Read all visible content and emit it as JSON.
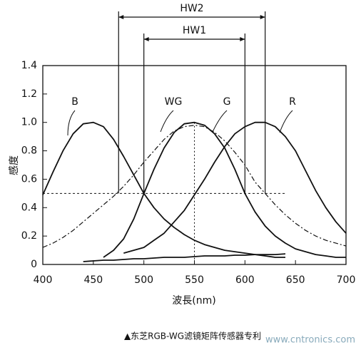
{
  "chart_data": {
    "type": "line",
    "y_label": "感度",
    "x_label": "波長(nm)",
    "caption": "▲东芝RGB-WG滤镜矩阵传感器专利",
    "watermark": "www.cntronics.com",
    "x": [
      400,
      410,
      420,
      430,
      440,
      450,
      460,
      470,
      480,
      490,
      500,
      510,
      520,
      530,
      540,
      550,
      560,
      570,
      580,
      590,
      600,
      610,
      620,
      630,
      640,
      650,
      660,
      670,
      680,
      690,
      700
    ],
    "series": [
      {
        "name": "B",
        "color": "#111111",
        "dash": "solid",
        "values": [
          0.49,
          0.65,
          0.8,
          0.92,
          0.99,
          1.0,
          0.97,
          0.88,
          0.76,
          0.63,
          0.5,
          0.4,
          0.32,
          0.26,
          0.21,
          0.17,
          0.14,
          0.12,
          0.1,
          0.09,
          0.08,
          0.07,
          0.06,
          0.05,
          0.05,
          null,
          null,
          null,
          null,
          null,
          null
        ]
      },
      {
        "name": "WG",
        "color": "#111111",
        "dash": "dash-dot",
        "values": [
          0.12,
          0.15,
          0.19,
          0.24,
          0.3,
          0.36,
          0.42,
          0.48,
          0.55,
          0.63,
          0.72,
          0.8,
          0.88,
          0.94,
          0.97,
          0.98,
          0.97,
          0.93,
          0.87,
          0.79,
          0.7,
          0.58,
          0.5,
          0.42,
          0.35,
          0.29,
          0.24,
          0.2,
          0.17,
          0.15,
          0.13
        ]
      },
      {
        "name": "G",
        "color": "#111111",
        "dash": "solid",
        "values": [
          null,
          null,
          null,
          null,
          null,
          null,
          0.05,
          0.1,
          0.18,
          0.32,
          0.5,
          0.67,
          0.82,
          0.93,
          0.99,
          1.0,
          0.98,
          0.92,
          0.82,
          0.67,
          0.5,
          0.37,
          0.27,
          0.2,
          0.15,
          0.11,
          0.09,
          0.07,
          0.06,
          0.05,
          0.05
        ]
      },
      {
        "name": "R",
        "color": "#111111",
        "dash": "solid",
        "values": [
          null,
          null,
          null,
          null,
          null,
          null,
          null,
          null,
          0.08,
          0.1,
          0.12,
          0.17,
          0.22,
          0.3,
          0.38,
          0.49,
          0.6,
          0.72,
          0.83,
          0.92,
          0.97,
          1.0,
          1.0,
          0.97,
          0.9,
          0.8,
          0.66,
          0.52,
          0.4,
          0.3,
          0.22
        ]
      },
      {
        "color": "#111111",
        "dash": "solid",
        "values": [
          null,
          null,
          null,
          null,
          0.02,
          0.025,
          0.03,
          0.03,
          0.035,
          0.04,
          0.04,
          0.045,
          0.05,
          0.05,
          0.05,
          0.055,
          0.06,
          0.06,
          0.06,
          0.065,
          0.065,
          0.07,
          0.07,
          0.07,
          0.075,
          null,
          null,
          null,
          null,
          null,
          null
        ]
      }
    ],
    "annotations": [
      {
        "text": "HW2",
        "x": [
          475,
          620
        ]
      },
      {
        "text": "HW1",
        "x": [
          500,
          600
        ]
      }
    ],
    "hline": {
      "y": 0.5,
      "x": [
        400,
        640
      ]
    },
    "vline": 550,
    "xlim": [
      400,
      700
    ],
    "xticks": [
      400,
      450,
      500,
      550,
      600,
      650,
      700
    ],
    "ylim": [
      0,
      1.4
    ],
    "yticks": [
      0,
      0.2,
      0.4,
      0.6,
      0.8,
      {
        "value": 1,
        "label": "1.0"
      },
      1.2,
      1.4
    ]
  }
}
